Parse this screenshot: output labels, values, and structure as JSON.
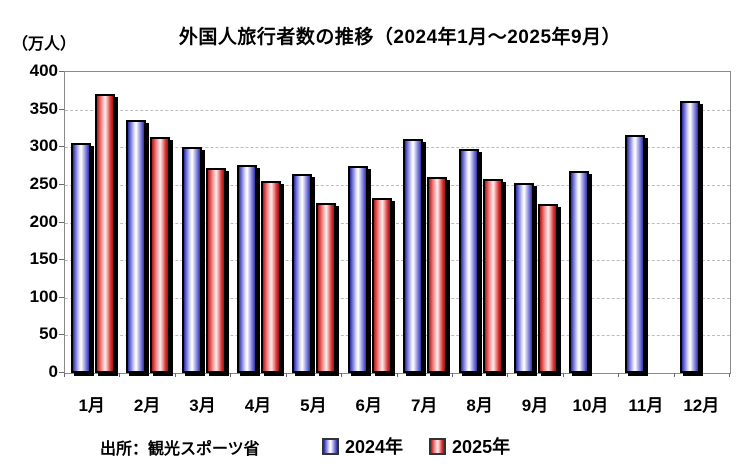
{
  "chart_data": {
    "type": "bar",
    "title": "外国人旅行者数の推移（2024年1月～2025年9月）",
    "unit_label": "（万人）",
    "categories": [
      "1月",
      "2月",
      "3月",
      "4月",
      "5月",
      "6月",
      "7月",
      "8月",
      "9月",
      "10月",
      "11月",
      "12月"
    ],
    "series": [
      {
        "name": "2024年",
        "color": "#3333bb",
        "values": [
          305,
          336,
          300,
          276,
          264,
          275,
          311,
          298,
          252,
          269,
          316,
          362
        ]
      },
      {
        "name": "2025年",
        "color": "#dd4444",
        "values": [
          371,
          313,
          272,
          255,
          226,
          232,
          261,
          258,
          224,
          null,
          null,
          null
        ]
      }
    ],
    "ylim": [
      0,
      400
    ],
    "y_ticks": [
      0,
      50,
      100,
      150,
      200,
      250,
      300,
      350,
      400
    ],
    "grid": true,
    "legend_position": "bottom",
    "source": "出所：観光スポーツ省"
  }
}
